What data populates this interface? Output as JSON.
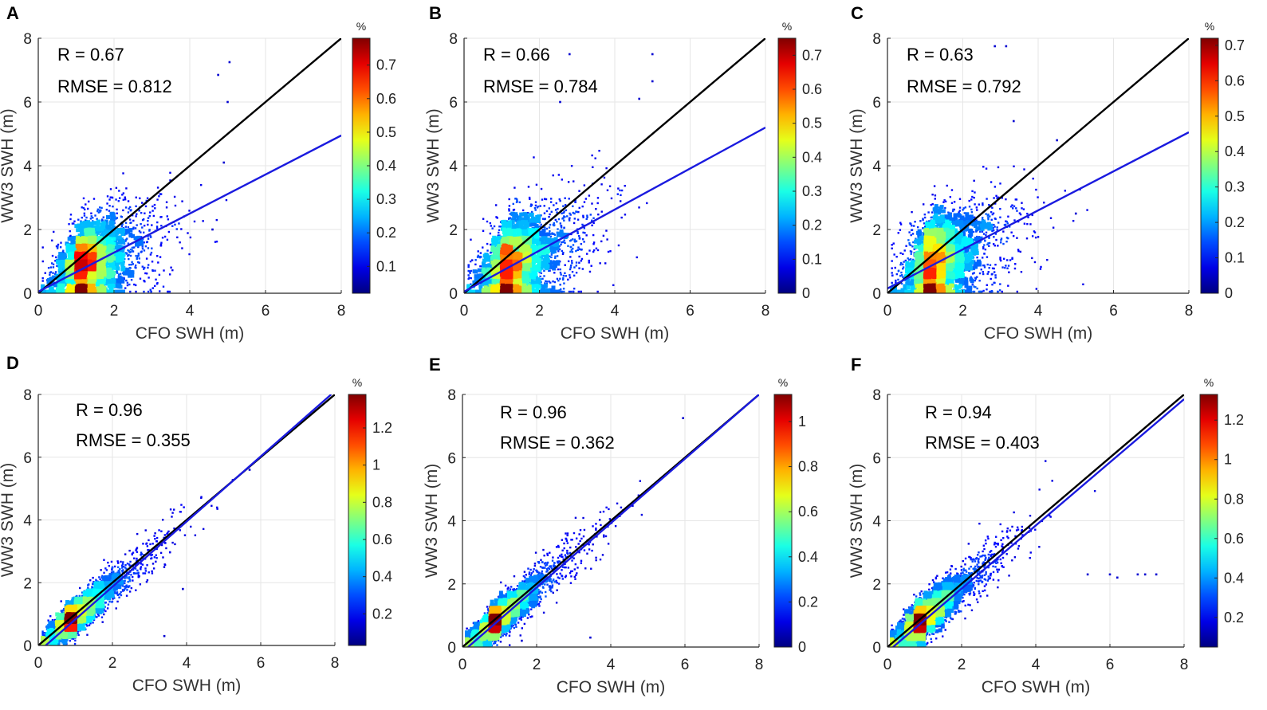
{
  "figure": {
    "xlabel": "CFO SWH (m)",
    "ylabel": "WW3 SWH (m)",
    "colorbar_unit": "%"
  },
  "chart_data": [
    {
      "panel": "A",
      "type": "scatter",
      "xlabel": "CFO SWH (m)",
      "ylabel": "WW3 SWH (m)",
      "xlim": [
        0,
        8
      ],
      "ylim": [
        0,
        8
      ],
      "xticks": [
        "0",
        "2",
        "4",
        "6",
        "8"
      ],
      "yticks": [
        "0",
        "2",
        "4",
        "6",
        "8"
      ],
      "stats": {
        "r": "R = 0.67",
        "rmse": "RMSE = 0.812"
      },
      "identity_line": {
        "name": "1:1 line",
        "color": "#000000",
        "x": [
          0,
          8
        ],
        "y": [
          0,
          8
        ]
      },
      "fit_line": {
        "name": "fit",
        "color": "#1a1adf",
        "x": [
          0,
          8
        ],
        "y": [
          0.05,
          4.95
        ]
      },
      "colorbar": {
        "unit": "%",
        "min": 0.02,
        "max": 0.78,
        "ticks": [
          0.1,
          0.2,
          0.3,
          0.4,
          0.5,
          0.6,
          0.7
        ],
        "tick_labels": [
          "0.1",
          "0.2",
          "0.3",
          "0.4",
          "0.5",
          "0.6",
          "0.7"
        ]
      },
      "density": {
        "center": [
          1.3,
          0.9
        ],
        "spread_x": 0.8,
        "spread_y": 0.5,
        "slope": 0.45,
        "outliers": [
          [
            5.05,
            7.25
          ],
          [
            4.75,
            6.85
          ],
          [
            5.0,
            6.0
          ],
          [
            4.9,
            4.1
          ],
          [
            4.6,
            2.0
          ]
        ]
      }
    },
    {
      "panel": "B",
      "type": "scatter",
      "xlabel": "CFO SWH (m)",
      "ylabel": "WW3 SWH (m)",
      "xlim": [
        0,
        8
      ],
      "ylim": [
        0,
        8
      ],
      "xticks": [
        "0",
        "2",
        "4",
        "6",
        "8"
      ],
      "yticks": [
        "0",
        "2",
        "4",
        "6",
        "8"
      ],
      "stats": {
        "r": "R = 0.66",
        "rmse": "RMSE = 0.784"
      },
      "identity_line": {
        "name": "1:1 line",
        "color": "#000000",
        "x": [
          0,
          8
        ],
        "y": [
          0,
          8
        ]
      },
      "fit_line": {
        "name": "fit",
        "color": "#1a1adf",
        "x": [
          0,
          8
        ],
        "y": [
          0.05,
          5.2
        ]
      },
      "colorbar": {
        "unit": "%",
        "min": 0.0,
        "max": 0.75,
        "ticks": [
          0,
          0.1,
          0.2,
          0.3,
          0.4,
          0.5,
          0.6,
          0.7
        ],
        "tick_labels": [
          "0",
          "0.1",
          "0.2",
          "0.3",
          "0.4",
          "0.5",
          "0.6",
          "0.7"
        ]
      },
      "density": {
        "center": [
          1.3,
          0.9
        ],
        "spread_x": 0.85,
        "spread_y": 0.55,
        "slope": 0.5,
        "outliers": [
          [
            5.0,
            7.5
          ],
          [
            2.8,
            7.5
          ],
          [
            5.0,
            6.65
          ],
          [
            4.65,
            6.1
          ],
          [
            2.55,
            6.0
          ]
        ]
      }
    },
    {
      "panel": "C",
      "type": "scatter",
      "xlabel": "CFO SWH (m)",
      "ylabel": "WW3 SWH (m)",
      "xlim": [
        0,
        8
      ],
      "ylim": [
        0,
        8
      ],
      "xticks": [
        "0",
        "2",
        "4",
        "6",
        "8"
      ],
      "yticks": [
        "0",
        "2",
        "4",
        "6",
        "8"
      ],
      "stats": {
        "r": "R = 0.63",
        "rmse": "RMSE = 0.792"
      },
      "identity_line": {
        "name": "1:1 line",
        "color": "#000000",
        "x": [
          0,
          8
        ],
        "y": [
          0,
          8
        ]
      },
      "fit_line": {
        "name": "fit",
        "color": "#1a1adf",
        "x": [
          0,
          8
        ],
        "y": [
          0.15,
          5.05
        ]
      },
      "colorbar": {
        "unit": "%",
        "min": 0.0,
        "max": 0.72,
        "ticks": [
          0,
          0.1,
          0.2,
          0.3,
          0.4,
          0.5,
          0.6,
          0.7
        ],
        "tick_labels": [
          "0",
          "0.1",
          "0.2",
          "0.3",
          "0.4",
          "0.5",
          "0.6",
          "0.7"
        ]
      },
      "density": {
        "center": [
          1.3,
          1.0
        ],
        "spread_x": 0.85,
        "spread_y": 0.6,
        "slope": 0.45,
        "outliers": [
          [
            2.85,
            7.75
          ],
          [
            3.15,
            7.75
          ],
          [
            3.35,
            5.4
          ],
          [
            4.5,
            4.8
          ],
          [
            5.0,
            2.5
          ]
        ]
      }
    },
    {
      "panel": "D",
      "type": "scatter",
      "xlabel": "CFO SWH (m)",
      "ylabel": "WW3 SWH (m)",
      "xlim": [
        0,
        8
      ],
      "ylim": [
        0,
        8
      ],
      "xticks": [
        "0",
        "2",
        "4",
        "6",
        "8"
      ],
      "yticks": [
        "0",
        "2",
        "4",
        "6",
        "8"
      ],
      "stats": {
        "r": "R = 0.96",
        "rmse": "RMSE = 0.355"
      },
      "identity_line": {
        "name": "1:1 line",
        "color": "#000000",
        "x": [
          0,
          8
        ],
        "y": [
          0,
          8
        ]
      },
      "fit_line": {
        "name": "fit",
        "color": "#1a1adf",
        "x": [
          0.2,
          7.9
        ],
        "y": [
          0,
          8.0
        ]
      },
      "colorbar": {
        "unit": "%",
        "min": 0.03,
        "max": 1.38,
        "ticks": [
          0.2,
          0.4,
          0.6,
          0.8,
          1.0,
          1.2
        ],
        "tick_labels": [
          "0.2",
          "0.4",
          "0.6",
          "0.8",
          "1",
          "1.2"
        ]
      },
      "density": {
        "center": [
          1.0,
          0.85
        ],
        "spread_x": 0.9,
        "spread_y": 0.2,
        "slope": 1.0,
        "outliers": [
          [
            3.4,
            0.3
          ],
          [
            3.9,
            1.8
          ],
          [
            5.7,
            5.6
          ]
        ]
      }
    },
    {
      "panel": "E",
      "type": "scatter",
      "xlabel": "CFO SWH (m)",
      "ylabel": "WW3 SWH (m)",
      "xlim": [
        0,
        8
      ],
      "ylim": [
        0,
        8
      ],
      "xticks": [
        "0",
        "2",
        "4",
        "6",
        "8"
      ],
      "yticks": [
        "0",
        "2",
        "4",
        "6",
        "8"
      ],
      "stats": {
        "r": "R = 0.96",
        "rmse": "RMSE = 0.362"
      },
      "identity_line": {
        "name": "1:1 line",
        "color": "#000000",
        "x": [
          0,
          8
        ],
        "y": [
          0,
          8
        ]
      },
      "fit_line": {
        "name": "fit",
        "color": "#1a1adf",
        "x": [
          0.15,
          8
        ],
        "y": [
          0,
          8.0
        ]
      },
      "colorbar": {
        "unit": "%",
        "min": 0.0,
        "max": 1.12,
        "ticks": [
          0,
          0.2,
          0.4,
          0.6,
          0.8,
          1.0
        ],
        "tick_labels": [
          "0",
          "0.2",
          "0.4",
          "0.6",
          "0.8",
          "1"
        ]
      },
      "density": {
        "center": [
          1.0,
          0.85
        ],
        "spread_x": 0.9,
        "spread_y": 0.22,
        "slope": 1.0,
        "outliers": [
          [
            5.95,
            7.25
          ],
          [
            3.45,
            0.3
          ],
          [
            1.6,
            0.2
          ]
        ]
      }
    },
    {
      "panel": "F",
      "type": "scatter",
      "xlabel": "CFO SWH (m)",
      "ylabel": "WW3 SWH (m)",
      "xlim": [
        0,
        8
      ],
      "ylim": [
        0,
        8
      ],
      "xticks": [
        "0",
        "2",
        "4",
        "6",
        "8"
      ],
      "yticks": [
        "0",
        "2",
        "4",
        "6",
        "8"
      ],
      "stats": {
        "r": "R = 0.94",
        "rmse": "RMSE = 0.403"
      },
      "identity_line": {
        "name": "1:1 line",
        "color": "#000000",
        "x": [
          0,
          8
        ],
        "y": [
          0,
          8
        ]
      },
      "fit_line": {
        "name": "fit",
        "color": "#1a1adf",
        "x": [
          0.15,
          8
        ],
        "y": [
          0,
          7.85
        ]
      },
      "colorbar": {
        "unit": "%",
        "min": 0.05,
        "max": 1.33,
        "ticks": [
          0.2,
          0.4,
          0.6,
          0.8,
          1.0,
          1.2
        ],
        "tick_labels": [
          "0.2",
          "0.4",
          "0.6",
          "0.8",
          "1",
          "1.2"
        ]
      },
      "density": {
        "center": [
          1.0,
          0.85
        ],
        "spread_x": 0.9,
        "spread_y": 0.28,
        "slope": 1.0,
        "outliers": [
          [
            6.75,
            2.3
          ],
          [
            6.95,
            2.3
          ],
          [
            7.25,
            2.3
          ],
          [
            5.4,
            2.3
          ],
          [
            6.0,
            2.3
          ],
          [
            6.2,
            2.2
          ]
        ]
      }
    }
  ]
}
